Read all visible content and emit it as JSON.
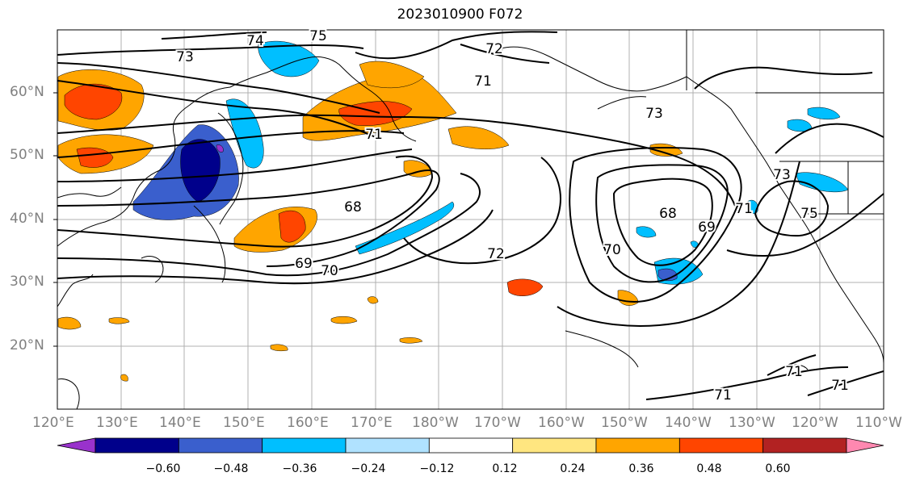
{
  "title": "2023010900 F072",
  "lat_labels": [
    "60°N",
    "50°N",
    "40°N",
    "30°N",
    "20°N"
  ],
  "lon_labels": [
    "120°E",
    "130°E",
    "140°E",
    "150°E",
    "160°E",
    "170°E",
    "180°W",
    "170°W",
    "160°W",
    "150°W",
    "140°W",
    "130°W",
    "120°W",
    "110°W"
  ],
  "contour_labels": [
    "73",
    "74",
    "75",
    "72",
    "71",
    "73",
    "71",
    "68",
    "69",
    "70",
    "72",
    "70",
    "68",
    "69",
    "71",
    "73",
    "75",
    "71",
    "71",
    "71"
  ],
  "colorbar": {
    "labels": [
      "−0.60",
      "−0.48",
      "−0.36",
      "−0.24",
      "−0.12",
      "0.12",
      "0.24",
      "0.36",
      "0.48",
      "0.60"
    ],
    "colors": [
      "#9932cc",
      "#00008b",
      "#3a5fcd",
      "#00bfff",
      "#b0e2ff",
      "#ffffff",
      "#ffe680",
      "#ffa500",
      "#ff4500",
      "#b22222",
      "#ff88b0"
    ]
  },
  "colors": {
    "contour": "#000000",
    "grid": "#b0b0b0",
    "coast": "#000000",
    "axis_text": "#808080"
  }
}
